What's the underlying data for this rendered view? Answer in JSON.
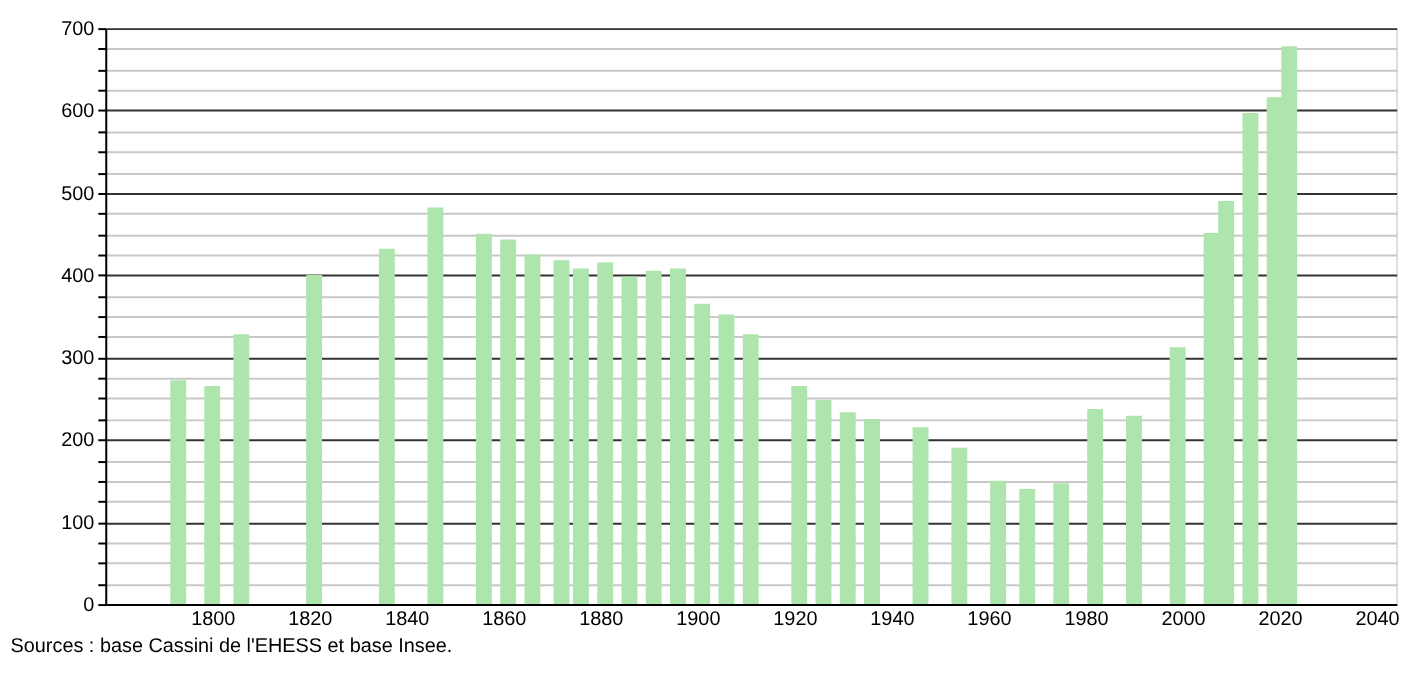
{
  "chart_data": {
    "type": "bar",
    "color": "#ade5ad",
    "x": [
      1793,
      1800,
      1806,
      1821,
      1836,
      1846,
      1856,
      1861,
      1866,
      1872,
      1876,
      1881,
      1886,
      1891,
      1896,
      1901,
      1906,
      1911,
      1921,
      1926,
      1931,
      1936,
      1946,
      1954,
      1962,
      1968,
      1975,
      1982,
      1990,
      1999,
      2006,
      2009,
      2014,
      2019,
      2022
    ],
    "values": [
      272,
      265,
      328,
      400,
      432,
      482,
      450,
      443,
      425,
      418,
      408,
      415,
      398,
      405,
      408,
      365,
      352,
      328,
      265,
      248,
      233,
      225,
      215,
      190,
      150,
      140,
      147,
      237,
      229,
      312,
      451,
      490,
      597,
      616,
      678
    ],
    "xlim": [
      1780,
      2042
    ],
    "xticks": [
      1800,
      1820,
      1840,
      1860,
      1880,
      1900,
      1920,
      1940,
      1960,
      1980,
      2000,
      2020,
      2040
    ],
    "ylim": [
      0,
      700
    ],
    "yticks": [
      0,
      {
        "value": 25,
        "label": null
      },
      {
        "value": 50,
        "label": null
      },
      {
        "value": 75,
        "label": null
      },
      100,
      {
        "value": 125,
        "label": null
      },
      {
        "value": 150,
        "label": null
      },
      {
        "value": 175,
        "label": null
      },
      200,
      {
        "value": 225,
        "label": null
      },
      {
        "value": 250,
        "label": null
      },
      {
        "value": 275,
        "label": null
      },
      300,
      {
        "value": 325,
        "label": null
      },
      {
        "value": 350,
        "label": null
      },
      {
        "value": 375,
        "label": null
      },
      400,
      {
        "value": 425,
        "label": null
      },
      {
        "value": 450,
        "label": null
      },
      {
        "value": 475,
        "label": null
      },
      500,
      {
        "value": 525,
        "label": null
      },
      {
        "value": 550,
        "label": null
      },
      {
        "value": 575,
        "label": null
      },
      600,
      {
        "value": 625,
        "label": null
      },
      {
        "value": 650,
        "label": null
      },
      {
        "value": 675,
        "label": null
      },
      700
    ],
    "grid": "y",
    "annotations": [
      "Sources : base Cassini de l'EHESS et base Insee."
    ]
  }
}
